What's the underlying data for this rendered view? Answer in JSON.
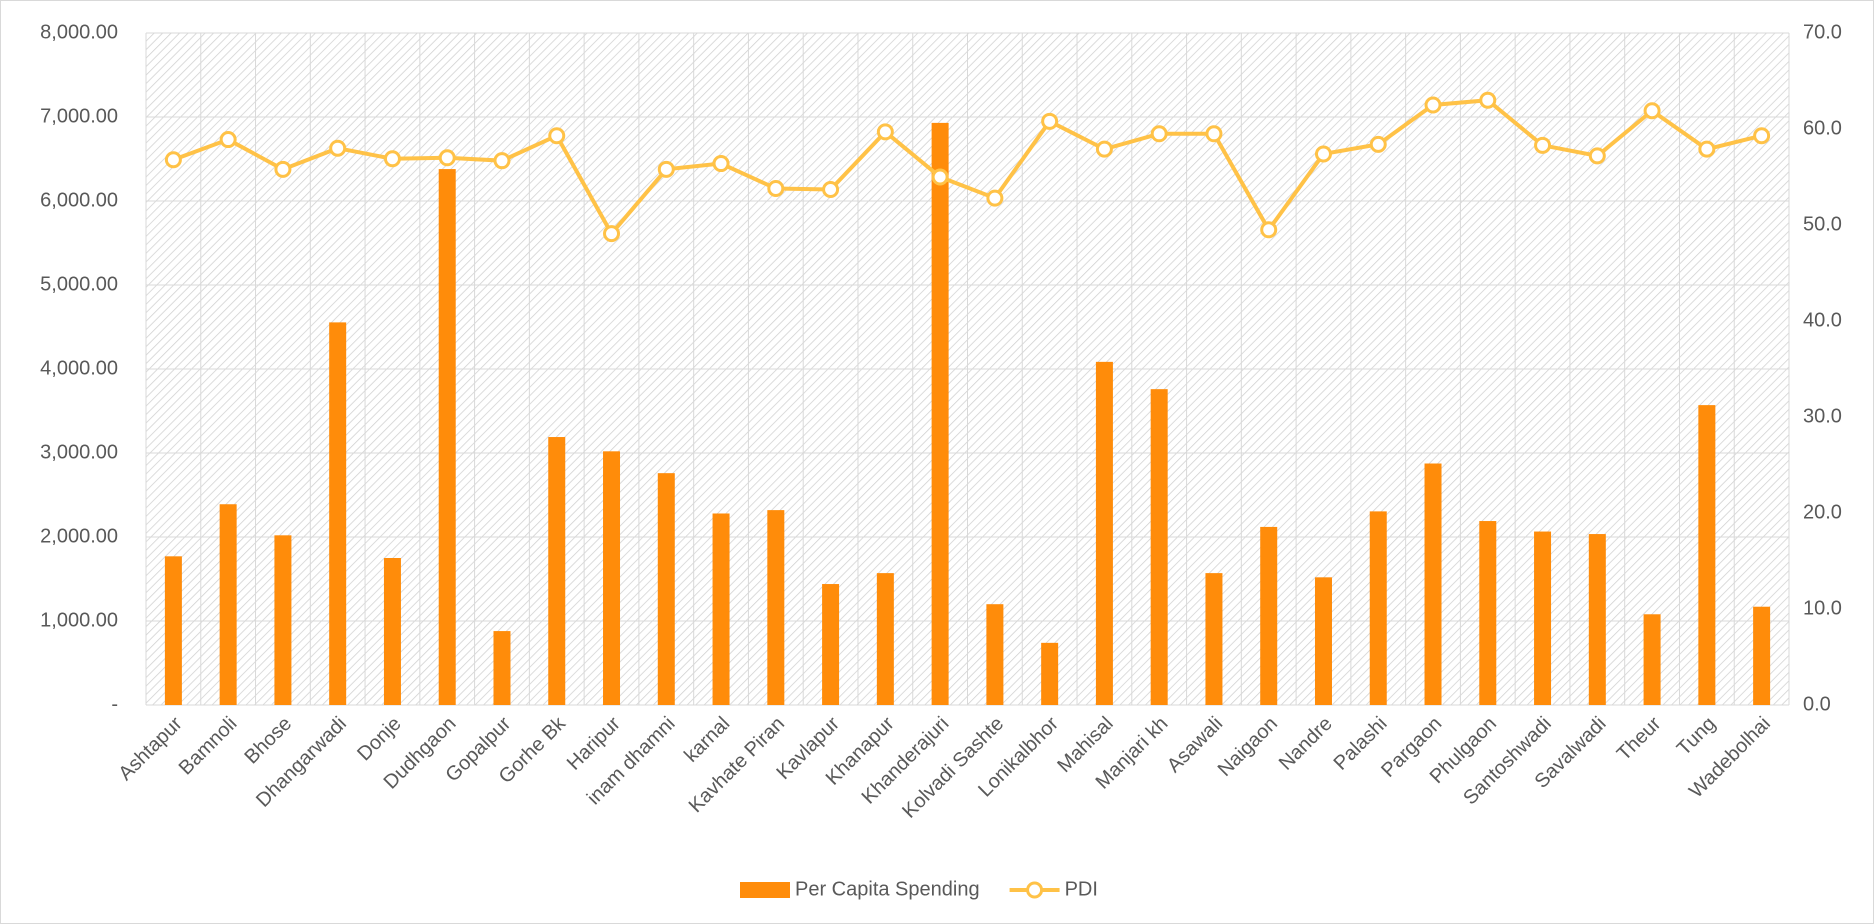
{
  "chart_data": {
    "type": "bar-line",
    "categories": [
      "Ashtapur",
      "Bamnoli",
      "Bhose",
      "Dhangarwadi",
      "Donje",
      "Dudhgaon",
      "Gopalpur",
      "Gorhe Bk",
      "Haripur",
      "inam dhamni",
      "karnal",
      "Kavhate Piran",
      "Kavlapur",
      "Khanapur",
      "Khanderajuri",
      "Kolvadi Sashte",
      "Lonikalbhor",
      "Mahisal",
      "Manjari kh",
      "Asawali",
      "Naigaon",
      "Nandre",
      "Palashi",
      "Pargaon",
      "Phulgaon",
      "Santoshwadi",
      "Savalwadi",
      "Theur",
      "Tung",
      "Wadebolhai"
    ],
    "series": [
      {
        "name": "Per Capita Spending",
        "type": "bar",
        "color": "#ff8c0a",
        "values": [
          1770,
          2390,
          2020,
          4555,
          1750,
          6380,
          880,
          3190,
          3020,
          2760,
          2280,
          2320,
          1440,
          1570,
          6930,
          1200,
          740,
          4085,
          3760,
          1570,
          2120,
          1520,
          2305,
          2875,
          2190,
          2065,
          2035,
          1080,
          3570,
          1170
        ]
      },
      {
        "name": "PDI",
        "type": "line",
        "axis": "y2",
        "color": "#ffc247",
        "values": [
          56.8,
          58.9,
          55.8,
          58.0,
          56.9,
          57.0,
          56.7,
          59.3,
          49.1,
          55.8,
          56.4,
          53.8,
          53.7,
          59.7,
          55.0,
          52.8,
          60.8,
          57.9,
          59.5,
          59.5,
          49.5,
          57.4,
          58.4,
          62.5,
          63.0,
          58.3,
          57.2,
          61.9,
          57.9,
          59.3
        ]
      }
    ],
    "ylim": [
      0,
      8000
    ],
    "yticks": [
      {
        "value": 0,
        "label": "-"
      },
      {
        "value": 1000,
        "label": "1,000.00"
      },
      {
        "value": 2000,
        "label": "2,000.00"
      },
      {
        "value": 3000,
        "label": "3,000.00"
      },
      {
        "value": 4000,
        "label": "4,000.00"
      },
      {
        "value": 5000,
        "label": "5,000.00"
      },
      {
        "value": 6000,
        "label": "6,000.00"
      },
      {
        "value": 7000,
        "label": "7,000.00"
      },
      {
        "value": 8000,
        "label": "8,000.00"
      }
    ],
    "y2lim": [
      0,
      70
    ],
    "y2ticks": [
      {
        "value": 0,
        "label": "0.0"
      },
      {
        "value": 10,
        "label": "10.0"
      },
      {
        "value": 20,
        "label": "20.0"
      },
      {
        "value": 30,
        "label": "30.0"
      },
      {
        "value": 40,
        "label": "40.0"
      },
      {
        "value": 50,
        "label": "50.0"
      },
      {
        "value": 60,
        "label": "60.0"
      },
      {
        "value": 70,
        "label": "70.0"
      }
    ],
    "grid": true,
    "legend": "bottom"
  }
}
